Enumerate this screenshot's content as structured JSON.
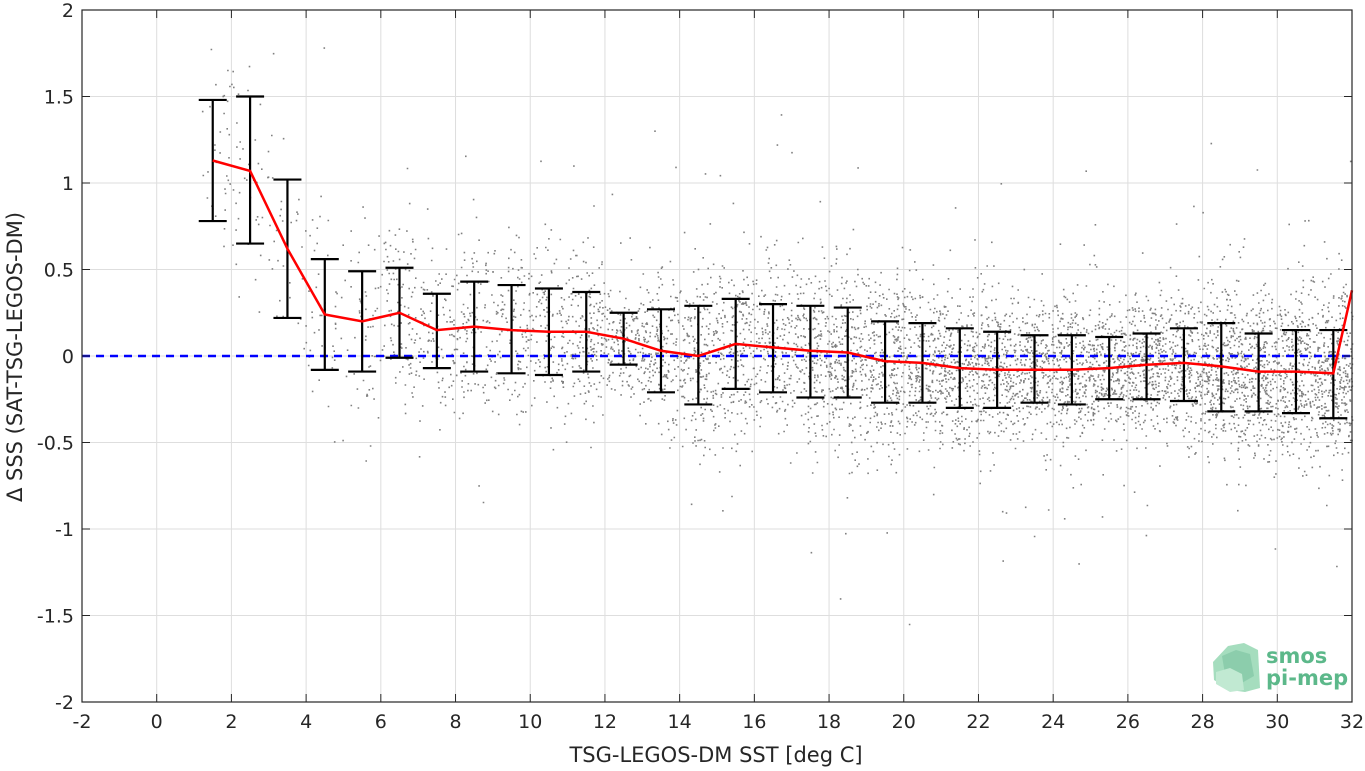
{
  "chart_data": {
    "type": "scatter",
    "title": "",
    "xlabel": "TSG-LEGOS-DM SST [deg C]",
    "ylabel": "Δ SSS (SAT-TSG-LEGOS-DM)",
    "xlim": [
      -2,
      32
    ],
    "ylim": [
      -2,
      2
    ],
    "xticks": [
      -2,
      0,
      2,
      4,
      6,
      8,
      10,
      12,
      14,
      16,
      18,
      20,
      22,
      24,
      26,
      28,
      30,
      32
    ],
    "yticks": [
      -2,
      -1.5,
      -1,
      -0.5,
      0,
      0.5,
      1,
      1.5,
      2
    ],
    "xtick_labels": [
      "-2",
      "0",
      "2",
      "4",
      "6",
      "8",
      "10",
      "12",
      "14",
      "16",
      "18",
      "20",
      "22",
      "24",
      "26",
      "28",
      "30",
      "32"
    ],
    "ytick_labels": [
      "-2",
      "-1.5",
      "-1",
      "-0.5",
      "0",
      "0.5",
      "1",
      "1.5",
      "2"
    ],
    "grid": true,
    "scatter_color": "#808080",
    "mean_line_color": "#ff0000",
    "zero_line_color": "#0000ff",
    "errorbar_color": "#000000",
    "mean_line": {
      "x": [
        1.5,
        2.5,
        3.5,
        4.5,
        5.5,
        6.5,
        7.5,
        8.5,
        9.5,
        10.5,
        11.5,
        12.5,
        13.5,
        14.5,
        15.5,
        16.5,
        17.5,
        18.5,
        19.5,
        20.5,
        21.5,
        22.5,
        23.5,
        24.5,
        25.5,
        26.5,
        27.5,
        28.5,
        29.5,
        30.5,
        31.5,
        32.0
      ],
      "y": [
        1.13,
        1.07,
        0.62,
        0.24,
        0.2,
        0.25,
        0.15,
        0.17,
        0.15,
        0.14,
        0.14,
        0.1,
        0.03,
        0.0,
        0.07,
        0.05,
        0.03,
        0.02,
        -0.03,
        -0.04,
        -0.07,
        -0.08,
        -0.08,
        -0.08,
        -0.07,
        -0.05,
        -0.04,
        -0.06,
        -0.09,
        -0.09,
        -0.1,
        0.38
      ]
    },
    "error_bars": {
      "x": [
        1.5,
        2.5,
        3.5,
        4.5,
        5.5,
        6.5,
        7.5,
        8.5,
        9.5,
        10.5,
        11.5,
        12.5,
        13.5,
        14.5,
        15.5,
        16.5,
        17.5,
        18.5,
        19.5,
        20.5,
        21.5,
        22.5,
        23.5,
        24.5,
        25.5,
        26.5,
        27.5,
        28.5,
        29.5,
        30.5,
        31.5
      ],
      "low": [
        0.78,
        0.65,
        0.22,
        -0.08,
        -0.09,
        -0.01,
        -0.07,
        -0.09,
        -0.1,
        -0.11,
        -0.09,
        -0.05,
        -0.21,
        -0.28,
        -0.19,
        -0.21,
        -0.24,
        -0.24,
        -0.27,
        -0.27,
        -0.3,
        -0.3,
        -0.27,
        -0.28,
        -0.25,
        -0.25,
        -0.26,
        -0.32,
        -0.32,
        -0.33,
        -0.36
      ],
      "high": [
        1.48,
        1.5,
        1.02,
        0.56,
        0.49,
        0.51,
        0.36,
        0.43,
        0.41,
        0.39,
        0.37,
        0.25,
        0.27,
        0.29,
        0.33,
        0.3,
        0.29,
        0.28,
        0.2,
        0.19,
        0.16,
        0.14,
        0.12,
        0.12,
        0.11,
        0.13,
        0.16,
        0.19,
        0.13,
        0.15,
        0.15
      ]
    },
    "zero_line_y": 0
  },
  "logo": {
    "line1": "smos",
    "line2": "pi-mep"
  }
}
